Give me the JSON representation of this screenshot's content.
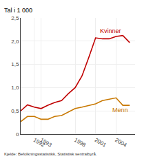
{
  "chart_data": {
    "type": "line",
    "ylabel": "Tal i 1 000",
    "source": "Kjelde: Befolkningsstatistikk, Statistisk sentralbyrå.",
    "x": [
      1990,
      1991,
      1992,
      1993,
      1994,
      1995,
      1996,
      1997,
      1998,
      1999,
      2000,
      2001,
      2002,
      2003,
      2004,
      2005,
      2006
    ],
    "series": [
      {
        "name": "Kvinner",
        "color": "#c00000",
        "values": [
          0.5,
          0.63,
          0.58,
          0.55,
          0.62,
          0.68,
          0.72,
          0.87,
          1.0,
          1.25,
          1.65,
          2.07,
          2.05,
          2.05,
          2.1,
          2.12,
          1.97
        ]
      },
      {
        "name": "Menn",
        "color": "#c87800",
        "values": [
          0.27,
          0.38,
          0.38,
          0.32,
          0.32,
          0.38,
          0.4,
          0.48,
          0.55,
          0.58,
          0.62,
          0.65,
          0.72,
          0.75,
          0.78,
          0.62,
          0.62
        ]
      }
    ],
    "xlim": [
      1990,
      2006.8
    ],
    "xticks": [
      1992,
      1993,
      1998,
      2001,
      2004
    ],
    "ylim": [
      0,
      2.5
    ],
    "yticks": [
      0,
      {
        "value": 0.5,
        "label": "0,5"
      },
      {
        "value": 1.0,
        "label": "1,0"
      },
      {
        "value": 1.5,
        "label": "1,5"
      },
      {
        "value": 2.0,
        "label": "2,0"
      },
      {
        "value": 2.5,
        "label": "2,5"
      }
    ],
    "grid": true
  }
}
